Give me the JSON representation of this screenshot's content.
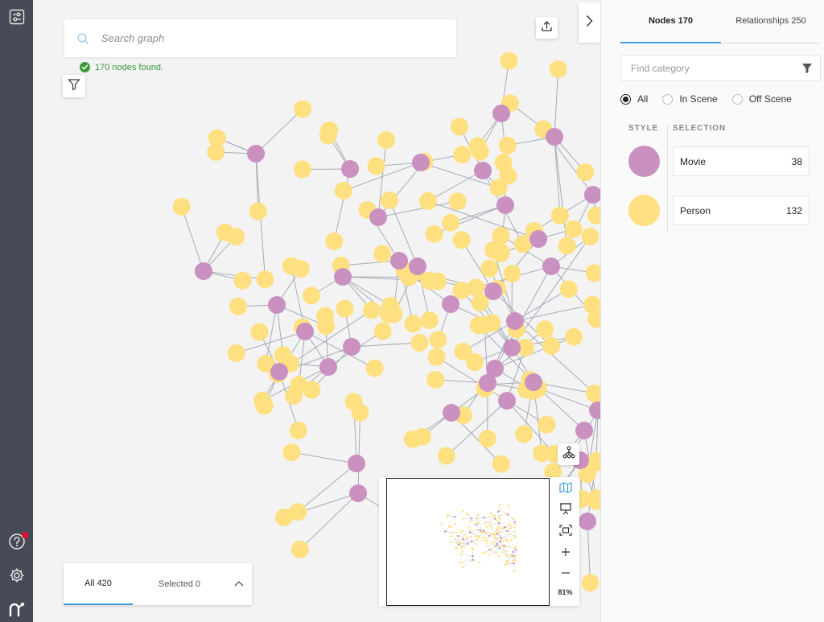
{
  "search": {
    "placeholder": "Search graph",
    "status": "170 nodes found."
  },
  "bottom_tabs": {
    "all_label": "All 420",
    "selected_label": "Selected 0"
  },
  "minimap": {
    "zoom": "81%"
  },
  "panel": {
    "tabs": [
      {
        "label": "Nodes 170"
      },
      {
        "label": "Relationships 250"
      }
    ],
    "find_placeholder": "Find category",
    "filters": [
      {
        "label": "All"
      },
      {
        "label": "In Scene"
      },
      {
        "label": "Off Scene"
      }
    ],
    "style_header": "STYLE",
    "selection_header": "SELECTION",
    "categories": [
      {
        "name": "Movie",
        "count": "38",
        "color": "#c990c0"
      },
      {
        "name": "Person",
        "count": "132",
        "color": "#ffe081"
      }
    ]
  },
  "colors": {
    "movie": "#c990c0",
    "person": "#ffe081",
    "accent": "#3e9ed9",
    "rail": "#474b57",
    "edge": "#a5abb6"
  }
}
